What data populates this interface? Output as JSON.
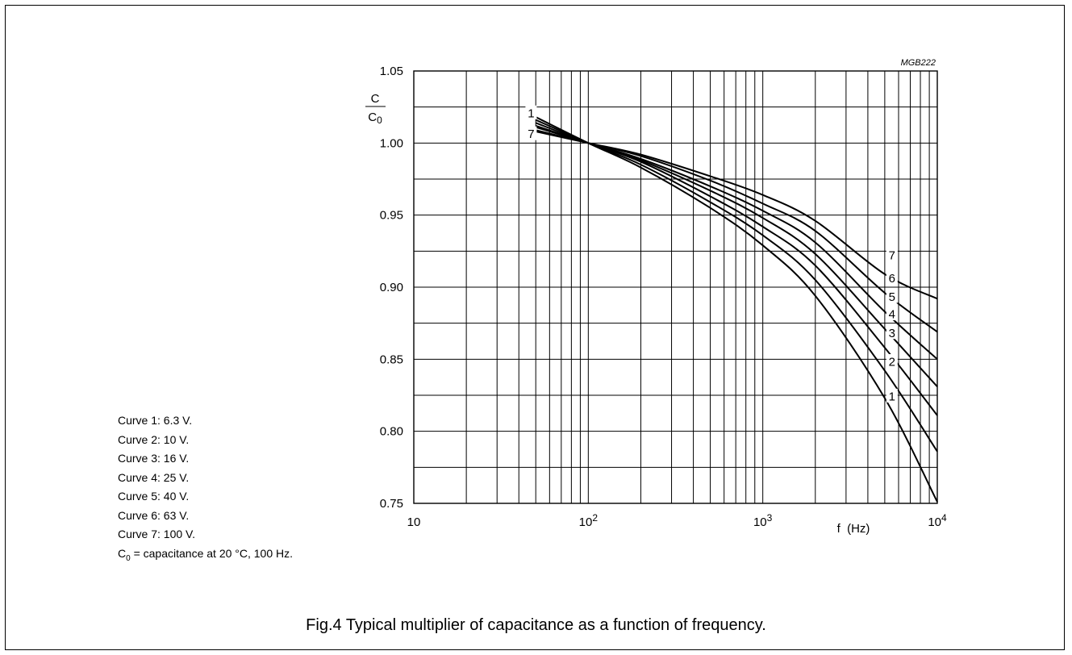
{
  "figure_code": "MGB222",
  "caption": "Fig.4  Typical multiplier of capacitance as a function of frequency.",
  "notes": [
    "Curve 1: 6.3 V.",
    "Curve 2: 10 V.",
    "Curve 3: 16 V.",
    "Curve 4: 25 V.",
    "Curve 5: 40 V.",
    "Curve 6: 63 V.",
    "Curve 7: 100 V."
  ],
  "c0_note": {
    "symbol": "C",
    "subscript": "0",
    "text": " = capacitance at 20 °C, 100 Hz."
  },
  "chart_data": {
    "type": "line",
    "title": "",
    "xlabel": "f  (Hz)",
    "ylabel_numerator": "C",
    "ylabel_denominator": "C",
    "ylabel_denominator_sub": "0",
    "x_scale": "log",
    "xlim": [
      10,
      10000
    ],
    "ylim": [
      0.75,
      1.05
    ],
    "grid": true,
    "x_ticks": [
      {
        "value": 10,
        "base": "10",
        "exp": ""
      },
      {
        "value": 100,
        "base": "10",
        "exp": "2"
      },
      {
        "value": 1000,
        "base": "10",
        "exp": "3"
      },
      {
        "value": 10000,
        "base": "10",
        "exp": "4"
      }
    ],
    "y_ticks": [
      {
        "value": 0.75,
        "label": "0.75"
      },
      {
        "value": 0.8,
        "label": "0.80"
      },
      {
        "value": 0.85,
        "label": "0.85"
      },
      {
        "value": 0.9,
        "label": "0.90"
      },
      {
        "value": 0.95,
        "label": "0.95"
      },
      {
        "value": 1.0,
        "label": "1.00"
      },
      {
        "value": 1.05,
        "label": "1.05"
      }
    ],
    "series": [
      {
        "name": "1",
        "x": [
          50,
          100,
          200,
          500,
          1000,
          2000,
          5000,
          10000
        ],
        "y": [
          1.018,
          1.0,
          0.983,
          0.955,
          0.929,
          0.894,
          0.823,
          0.751
        ]
      },
      {
        "name": "2",
        "x": [
          50,
          100,
          200,
          500,
          1000,
          2000,
          5000,
          10000
        ],
        "y": [
          1.016,
          1.0,
          0.985,
          0.959,
          0.936,
          0.905,
          0.842,
          0.786
        ]
      },
      {
        "name": "3",
        "x": [
          50,
          100,
          200,
          500,
          1000,
          2000,
          5000,
          10000
        ],
        "y": [
          1.014,
          1.0,
          0.987,
          0.963,
          0.942,
          0.915,
          0.858,
          0.811
        ]
      },
      {
        "name": "4",
        "x": [
          50,
          100,
          200,
          500,
          1000,
          2000,
          5000,
          10000
        ],
        "y": [
          1.012,
          1.0,
          0.988,
          0.967,
          0.948,
          0.923,
          0.871,
          0.831
        ]
      },
      {
        "name": "5",
        "x": [
          50,
          100,
          200,
          500,
          1000,
          2000,
          5000,
          10000
        ],
        "y": [
          1.011,
          1.0,
          0.989,
          0.97,
          0.953,
          0.931,
          0.883,
          0.85
        ]
      },
      {
        "name": "6",
        "x": [
          50,
          100,
          200,
          500,
          1000,
          2000,
          5000,
          10000
        ],
        "y": [
          1.009,
          1.0,
          0.991,
          0.974,
          0.958,
          0.939,
          0.896,
          0.869
        ]
      },
      {
        "name": "7",
        "x": [
          50,
          100,
          200,
          500,
          1000,
          2000,
          5000,
          10000
        ],
        "y": [
          1.008,
          1.0,
          0.992,
          0.977,
          0.964,
          0.946,
          0.909,
          0.892
        ]
      }
    ],
    "curve_labels": [
      {
        "text": "1",
        "x": 47,
        "y": 1.021
      },
      {
        "text": "7",
        "x": 47,
        "y": 1.0065
      },
      {
        "text": "7",
        "x": 5500,
        "y": 0.9225
      },
      {
        "text": "6",
        "x": 5500,
        "y": 0.9065
      },
      {
        "text": "5",
        "x": 5500,
        "y": 0.8935
      },
      {
        "text": "4",
        "x": 5500,
        "y": 0.8815
      },
      {
        "text": "3",
        "x": 5500,
        "y": 0.8685
      },
      {
        "text": "2",
        "x": 5500,
        "y": 0.8485
      },
      {
        "text": "1",
        "x": 5500,
        "y": 0.8245
      }
    ]
  }
}
